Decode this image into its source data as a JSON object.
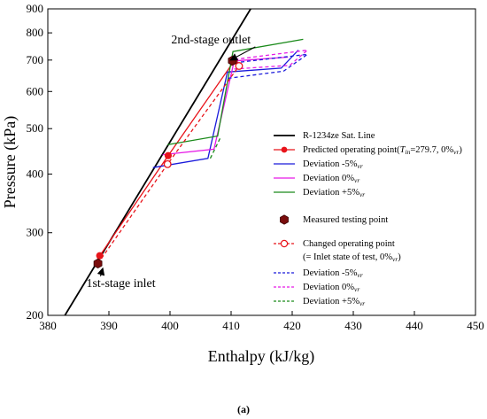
{
  "chart_data": {
    "type": "line",
    "xlabel": "Enthalpy (kJ/kg)",
    "ylabel": "Pressure (kPa)",
    "xlim": [
      380,
      450
    ],
    "ylim": [
      200,
      900
    ],
    "yscale": "log",
    "xticks": [
      380,
      390,
      400,
      410,
      420,
      430,
      440,
      450
    ],
    "yticks": [
      200,
      300,
      400,
      500,
      600,
      700,
      800,
      900
    ],
    "caption": "(a)",
    "colors": {
      "sat": "#000000",
      "predicted": "#e8141b",
      "minus5": "#1a1adb",
      "zero": "#e619e6",
      "plus5": "#1a8a1a",
      "measured": "#7a0d0d"
    },
    "series": [
      {
        "name": "R-1234ze Sat. Line",
        "style": "solid",
        "color": "#000000",
        "points": [
          [
            382.8,
            200
          ],
          [
            413.2,
            900
          ]
        ]
      },
      {
        "name": "Predicted operating point(T_in=279.7, 0%_vr)",
        "style": "solid",
        "color": "#e8141b",
        "marker": "filled-circle",
        "points": [
          [
            388.5,
            268
          ],
          [
            399.7,
            438
          ],
          [
            410.5,
            697
          ]
        ]
      },
      {
        "name": "Deviation -5%_vr",
        "style": "solid",
        "color": "#1a1adb",
        "points": [
          [
            397.2,
            413
          ],
          [
            406.2,
            432
          ],
          [
            409.4,
            660
          ],
          [
            418.2,
            673
          ],
          [
            421,
            735
          ]
        ]
      },
      {
        "name": "Deviation 0%_vr",
        "style": "solid",
        "color": "#e619e6",
        "points": [
          [
            398.8,
            440
          ],
          [
            407.2,
            452
          ],
          [
            410.5,
            697
          ],
          [
            419.3,
            710
          ]
        ]
      },
      {
        "name": "Deviation +5%_vr",
        "style": "solid",
        "color": "#1a8a1a",
        "points": [
          [
            399.6,
            462
          ],
          [
            407.8,
            482
          ],
          [
            410.3,
            730
          ],
          [
            421.8,
            775
          ]
        ]
      },
      {
        "name": "Changed operating point (= Inlet state of test, 0%_vr)",
        "style": "dashed",
        "color": "#e8141b",
        "marker": "open-circle",
        "points": [
          [
            388.2,
            258
          ],
          [
            399.6,
            420
          ],
          [
            411.3,
            680
          ]
        ]
      },
      {
        "name": "Deviation -5%_vr (changed)",
        "style": "dashed",
        "color": "#1a1adb",
        "points": [
          [
            409.5,
            640
          ],
          [
            418.6,
            663
          ],
          [
            422.5,
            720
          ],
          [
            410.3,
            690
          ]
        ]
      },
      {
        "name": "Deviation 0%_vr (changed)",
        "style": "dashed",
        "color": "#e619e6",
        "points": [
          [
            410.5,
            670
          ],
          [
            419.6,
            682
          ],
          [
            422.5,
            735
          ],
          [
            409.8,
            700
          ]
        ]
      },
      {
        "name": "Deviation +5%_vr (changed)",
        "style": "dashed",
        "color": "#1a8a1a",
        "points": [
          [
            406.6,
            432
          ],
          [
            408.3,
            480
          ]
        ]
      },
      {
        "name": "Measured testing point",
        "style": "marker",
        "color": "#7a0d0d",
        "marker": "hexagon",
        "points": [
          [
            388.2,
            258
          ],
          [
            410.2,
            698
          ]
        ]
      }
    ],
    "annotations": [
      {
        "text": "2nd-stage outlet",
        "x": 400.2,
        "y": 760,
        "target": [
          409.9,
          700
        ]
      },
      {
        "text": "1st-stage inlet",
        "x": 386.3,
        "y": 230,
        "target": [
          389,
          252
        ]
      }
    ],
    "legend": {
      "position": "right",
      "entries": [
        {
          "label": "R-1234ze Sat. Line",
          "sym": "line",
          "color": "#000000"
        },
        {
          "label": "Predicted operating point(",
          "label_tail": "=279.7, 0%",
          "label_T": "T",
          "label_in": "in",
          "label_vr": "vr",
          "sym": "line-dot",
          "color": "#e8141b"
        },
        {
          "label": "Deviation -5%",
          "sub": "vr",
          "sym": "line",
          "color": "#1a1adb"
        },
        {
          "label": "Deviation 0%",
          "sub": "vr",
          "sym": "line",
          "color": "#e619e6"
        },
        {
          "label": "Deviation +5%",
          "sub": "vr",
          "sym": "line",
          "color": "#1a8a1a"
        },
        {
          "label": "Measured testing point",
          "sym": "hexagon",
          "color": "#7a0d0d"
        },
        {
          "label": "Changed operating point",
          "sym": "dash-ocircle",
          "color": "#e8141b"
        },
        {
          "label": "(= Inlet state of test, 0%",
          "sub": "vr",
          "tail": ")",
          "sym": "none",
          "color": "#000000"
        },
        {
          "label": "Deviation -5%",
          "sub": "vr",
          "sym": "dash",
          "color": "#1a1adb"
        },
        {
          "label": "Deviation 0%",
          "sub": "vr",
          "sym": "dash",
          "color": "#e619e6"
        },
        {
          "label": "Deviation +5%",
          "sub": "vr",
          "sym": "dash",
          "color": "#1a8a1a"
        }
      ]
    }
  }
}
